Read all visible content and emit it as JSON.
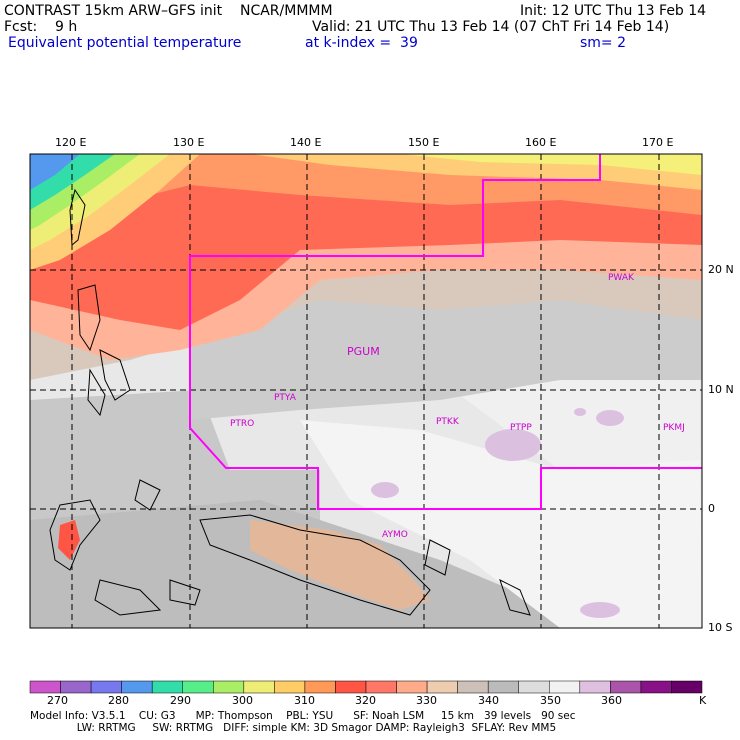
{
  "header": {
    "title_line": "CONTRAST 15km ARW–GFS init    NCAR/MMMM",
    "init": "Init: 12 UTC Thu 13 Feb 14",
    "fcst": "Fcst:    9 h",
    "valid": "Valid: 21 UTC Thu 13 Feb 14 (07 ChT Fri 14 Feb 14)",
    "field": "Equivalent potential temperature",
    "level": "at k-index =  39",
    "smooth": "sm= 2"
  },
  "map": {
    "lon_labels": [
      "120 E",
      "130 E",
      "140 E",
      "150 E",
      "160 E",
      "170 E"
    ],
    "lat_labels": [
      "20 N",
      "10 N",
      "0",
      "10 S"
    ],
    "stations": [
      "PTYA",
      "PTRO",
      "PGUM",
      "PTKK",
      "PTPP",
      "PKMJ",
      "PWAK",
      "AYMO"
    ],
    "domain_color": "#ff00ff"
  },
  "colorbar": {
    "labels": [
      "270",
      "280",
      "290",
      "300",
      "310",
      "320",
      "330",
      "340",
      "350",
      "360",
      "K"
    ],
    "colors": [
      "#cc55cc",
      "#9966cc",
      "#7777ee",
      "#5599ee",
      "#33ddaa",
      "#55ee88",
      "#aaee66",
      "#eeee77",
      "#ffcc66",
      "#ff9955",
      "#ff5544",
      "#ff7766",
      "#ffaa88",
      "#eeccb0",
      "#ccc0b8",
      "#bbbbbb",
      "#dddddd",
      "#f2f2f2",
      "#e0c0e0",
      "#aa55aa",
      "#881188",
      "#660066"
    ]
  },
  "footer": {
    "line1": "Model Info: V3.5.1    CU: G3      MP: Thompson    PBL: YSU      SF: Noah LSM     15 km   39 levels   90 sec",
    "line2": "              LW: RRTMG     SW: RRTMG   DIFF: simple KM: 3D Smagor DAMP: Rayleigh3  SFLAY: Rev MM5"
  }
}
